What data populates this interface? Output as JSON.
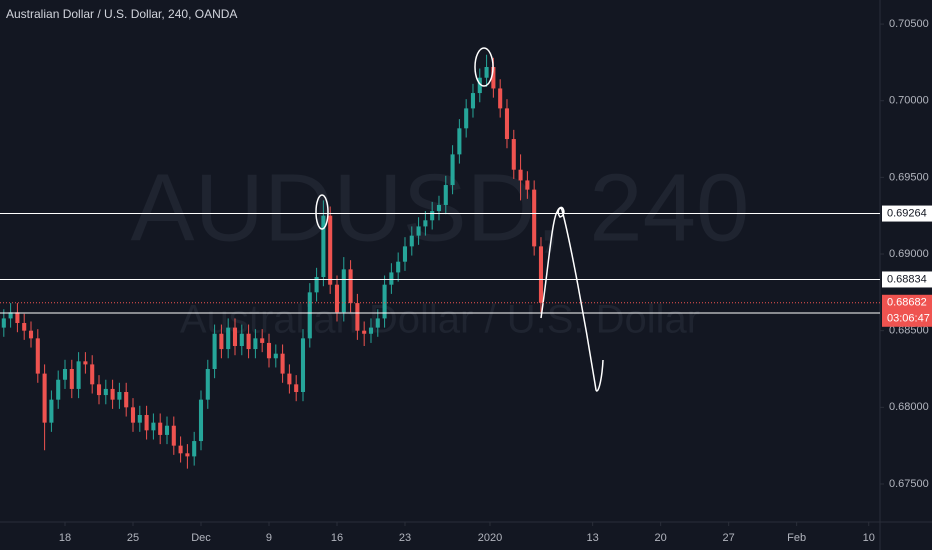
{
  "chart_data": {
    "type": "candlestick",
    "title": "Australian Dollar / U.S. Dollar, 240, OANDA",
    "watermark": "AUDUSD, 240",
    "watermark_subtitle": "Australian Dollar / U.S. Dollar",
    "countdown": "03:06:47",
    "up_color": "#26a69a",
    "down_color": "#ef5350",
    "last_price_color": "#ef5350",
    "line_color": "#ffffff",
    "grid": false,
    "x": [
      -4.5,
      -4,
      -3.5,
      -3,
      -2.5,
      -2,
      -1.5,
      -1,
      -0.5,
      0,
      0.5,
      1,
      1.5,
      2,
      2.5,
      3,
      3.5,
      4,
      4.5,
      5,
      5.5,
      6,
      6.5,
      7,
      7.5,
      8,
      8.5,
      9,
      9.5,
      10,
      10.5,
      11,
      11.5,
      12,
      12.5,
      13,
      13.5,
      14,
      14.5,
      15,
      15.5,
      16,
      16.5,
      17,
      17.5,
      18,
      18.5,
      19,
      19.5,
      20,
      20.5,
      21,
      21.5,
      22,
      22.5,
      23,
      23.5,
      24,
      24.5,
      25,
      25.5,
      26,
      26.5,
      27,
      27.5,
      28,
      28.5,
      29,
      29.5,
      30,
      30.5,
      31,
      31.5,
      32,
      32.5,
      33,
      33.5,
      34,
      34.5,
      35
    ],
    "open": [
      0.6852,
      0.6858,
      0.6862,
      0.6855,
      0.685,
      0.6845,
      0.6822,
      0.679,
      0.6805,
      0.6818,
      0.6825,
      0.6812,
      0.683,
      0.6828,
      0.6815,
      0.6808,
      0.6812,
      0.6805,
      0.681,
      0.68,
      0.679,
      0.6795,
      0.6785,
      0.679,
      0.6782,
      0.6788,
      0.6775,
      0.677,
      0.6768,
      0.6778,
      0.6805,
      0.6825,
      0.6848,
      0.6838,
      0.6852,
      0.684,
      0.6848,
      0.6838,
      0.6845,
      0.6842,
      0.6832,
      0.6835,
      0.6822,
      0.6815,
      0.681,
      0.6845,
      0.6875,
      0.6885,
      0.6925,
      0.688,
      0.6862,
      0.689,
      0.6868,
      0.685,
      0.6848,
      0.6852,
      0.6858,
      0.688,
      0.6888,
      0.6895,
      0.6905,
      0.6912,
      0.6918,
      0.6922,
      0.6928,
      0.6932,
      0.6945,
      0.6965,
      0.6982,
      0.6995,
      0.7005,
      0.7015,
      0.7022,
      0.7008,
      0.6995,
      0.6975,
      0.6955,
      0.6948,
      0.6942,
      0.6905
    ],
    "high": [
      0.6864,
      0.6868,
      0.6868,
      0.6861,
      0.6856,
      0.6851,
      0.6828,
      0.6811,
      0.6824,
      0.6831,
      0.6831,
      0.6836,
      0.6836,
      0.6834,
      0.6821,
      0.6818,
      0.6818,
      0.6816,
      0.6816,
      0.6806,
      0.6801,
      0.6801,
      0.6796,
      0.6796,
      0.6794,
      0.6794,
      0.6781,
      0.6776,
      0.6784,
      0.6811,
      0.6831,
      0.6854,
      0.6854,
      0.6858,
      0.6858,
      0.6854,
      0.6854,
      0.6851,
      0.6851,
      0.6848,
      0.6841,
      0.6841,
      0.6828,
      0.6821,
      0.6851,
      0.6881,
      0.6891,
      0.6935,
      0.6931,
      0.6886,
      0.6898,
      0.6896,
      0.6874,
      0.6856,
      0.6858,
      0.6864,
      0.6886,
      0.6894,
      0.6901,
      0.6911,
      0.6918,
      0.6924,
      0.6928,
      0.6934,
      0.6938,
      0.6951,
      0.6971,
      0.6988,
      0.7001,
      0.7011,
      0.7021,
      0.703,
      0.7028,
      0.7014,
      0.7001,
      0.6981,
      0.6965,
      0.6954,
      0.6948,
      0.6911
    ],
    "low": [
      0.6846,
      0.6852,
      0.6849,
      0.6844,
      0.6839,
      0.6816,
      0.6772,
      0.6784,
      0.6799,
      0.6812,
      0.6806,
      0.6806,
      0.6822,
      0.6809,
      0.6802,
      0.6802,
      0.6799,
      0.6799,
      0.6794,
      0.6784,
      0.6784,
      0.6779,
      0.6779,
      0.6776,
      0.6776,
      0.6769,
      0.6764,
      0.676,
      0.6762,
      0.6772,
      0.6799,
      0.6819,
      0.6832,
      0.6832,
      0.6834,
      0.6834,
      0.6832,
      0.6832,
      0.6836,
      0.6826,
      0.6826,
      0.6816,
      0.6809,
      0.6804,
      0.6804,
      0.6839,
      0.6869,
      0.6879,
      0.6874,
      0.6856,
      0.6856,
      0.6862,
      0.6844,
      0.684,
      0.6842,
      0.6846,
      0.6852,
      0.6874,
      0.6882,
      0.6889,
      0.6899,
      0.6906,
      0.6912,
      0.6916,
      0.6922,
      0.6926,
      0.6939,
      0.6959,
      0.6976,
      0.6989,
      0.6999,
      0.7009,
      0.7002,
      0.6989,
      0.6969,
      0.6949,
      0.6935,
      0.6936,
      0.6899,
      0.6862
    ],
    "close": [
      0.6858,
      0.6862,
      0.6855,
      0.685,
      0.6845,
      0.6822,
      0.679,
      0.6805,
      0.6818,
      0.6825,
      0.6812,
      0.683,
      0.6828,
      0.6815,
      0.6808,
      0.6812,
      0.6805,
      0.681,
      0.68,
      0.679,
      0.6795,
      0.6785,
      0.679,
      0.6782,
      0.6788,
      0.6775,
      0.677,
      0.6768,
      0.6778,
      0.6805,
      0.6825,
      0.6848,
      0.6838,
      0.6852,
      0.684,
      0.6848,
      0.6838,
      0.6845,
      0.6842,
      0.6832,
      0.6835,
      0.6822,
      0.6815,
      0.681,
      0.6845,
      0.6875,
      0.6885,
      0.6925,
      0.688,
      0.6862,
      0.689,
      0.6868,
      0.685,
      0.6848,
      0.6852,
      0.6858,
      0.688,
      0.6888,
      0.6895,
      0.6905,
      0.6912,
      0.6918,
      0.6922,
      0.6928,
      0.6932,
      0.6945,
      0.6965,
      0.6982,
      0.6995,
      0.7005,
      0.7015,
      0.7022,
      0.7008,
      0.6995,
      0.6975,
      0.6955,
      0.6948,
      0.6942,
      0.6905,
      0.68682
    ],
    "horizontal_lines": [
      0.69264,
      0.68834,
      0.68615
    ],
    "ylim": [
      0.67252,
      0.70657
    ],
    "yticks": [
      {
        "value": 0.675,
        "label": "0.67500"
      },
      {
        "value": 0.68,
        "label": "0.68000"
      },
      {
        "value": 0.685,
        "label": "0.68500"
      },
      {
        "value": 0.69,
        "label": "0.69000"
      },
      {
        "value": 0.695,
        "label": "0.69500"
      },
      {
        "value": 0.7,
        "label": "0.70000"
      },
      {
        "value": 0.705,
        "label": "0.70500"
      }
    ],
    "xlim": [
      -4.78,
      59.93
    ],
    "xticks": [
      {
        "value": 0,
        "label": "18"
      },
      {
        "value": 5,
        "label": "25"
      },
      {
        "value": 10,
        "label": "Dec"
      },
      {
        "value": 15,
        "label": "9"
      },
      {
        "value": 20,
        "label": "16"
      },
      {
        "value": 25,
        "label": "23"
      },
      {
        "value": 31.25,
        "label": "2020"
      },
      {
        "value": 38.8,
        "label": "13"
      },
      {
        "value": 43.8,
        "label": "20"
      },
      {
        "value": 48.8,
        "label": "27"
      },
      {
        "value": 53.8,
        "label": "Feb"
      },
      {
        "value": 59.1,
        "label": "10"
      }
    ]
  }
}
